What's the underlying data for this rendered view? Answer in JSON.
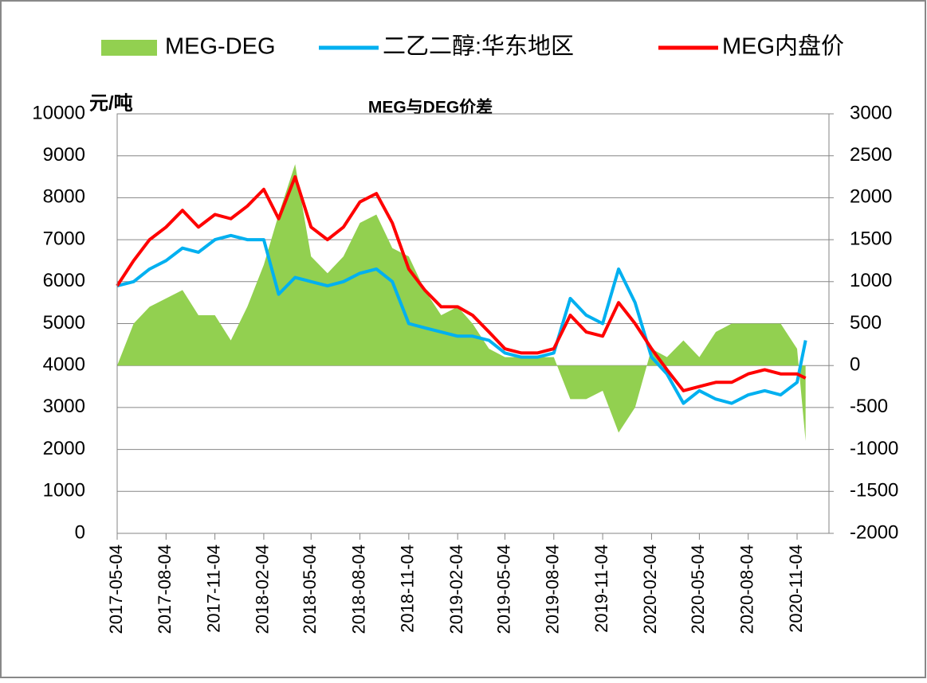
{
  "chart_data": {
    "type": "line",
    "title": "MEG与DEG价差",
    "y_label": "元/吨",
    "x": [
      "2017-05-04",
      "2017-06-04",
      "2017-07-04",
      "2017-08-04",
      "2017-09-04",
      "2017-10-04",
      "2017-11-04",
      "2017-12-04",
      "2018-01-04",
      "2018-02-04",
      "2018-03-04",
      "2018-04-04",
      "2018-05-04",
      "2018-06-04",
      "2018-07-04",
      "2018-08-04",
      "2018-09-04",
      "2018-10-04",
      "2018-11-04",
      "2018-12-04",
      "2019-01-04",
      "2019-02-04",
      "2019-03-04",
      "2019-04-04",
      "2019-05-04",
      "2019-06-04",
      "2019-07-04",
      "2019-08-04",
      "2019-09-04",
      "2019-10-04",
      "2019-11-04",
      "2019-12-04",
      "2020-01-04",
      "2020-02-04",
      "2020-03-04",
      "2020-04-04",
      "2020-05-04",
      "2020-06-04",
      "2020-07-04",
      "2020-08-04",
      "2020-09-04",
      "2020-10-04",
      "2020-11-04",
      "2020-11-20"
    ],
    "series": [
      {
        "name": "MEG-DEG",
        "color": "#92d050",
        "type": "area",
        "axis": "y2",
        "values": [
          0,
          500,
          700,
          800,
          900,
          600,
          600,
          300,
          700,
          1200,
          1800,
          2400,
          1300,
          1100,
          1300,
          1700,
          1800,
          1400,
          1300,
          900,
          600,
          700,
          500,
          200,
          100,
          100,
          100,
          100,
          -400,
          -400,
          -300,
          -800,
          -500,
          200,
          100,
          300,
          100,
          400,
          500,
          500,
          500,
          500,
          200,
          -900
        ]
      },
      {
        "name": "二乙二醇:华东地区",
        "color": "#00b0f0",
        "type": "line",
        "values": [
          5900,
          6000,
          6300,
          6500,
          6800,
          6700,
          7000,
          7100,
          7000,
          7000,
          5700,
          6100,
          6000,
          5900,
          6000,
          6200,
          6300,
          6000,
          5000,
          4900,
          4800,
          4700,
          4700,
          4600,
          4300,
          4200,
          4200,
          4300,
          5600,
          5200,
          5000,
          6300,
          5500,
          4200,
          3800,
          3100,
          3400,
          3200,
          3100,
          3300,
          3400,
          3300,
          3600,
          4600
        ]
      },
      {
        "name": "MEG内盘价",
        "color": "#ff0000",
        "type": "line",
        "values": [
          5900,
          6500,
          7000,
          7300,
          7700,
          7300,
          7600,
          7500,
          7800,
          8200,
          7500,
          8500,
          7300,
          7000,
          7300,
          7900,
          8100,
          7400,
          6300,
          5800,
          5400,
          5400,
          5200,
          4800,
          4400,
          4300,
          4300,
          4400,
          5200,
          4800,
          4700,
          5500,
          5000,
          4400,
          3900,
          3400,
          3500,
          3600,
          3600,
          3800,
          3900,
          3800,
          3800,
          3700
        ]
      }
    ],
    "xlim": [
      "2017-05-04",
      "2021-01-03"
    ],
    "xticks": [
      "2017-05-04",
      "2017-08-04",
      "2017-11-04",
      "2018-02-04",
      "2018-05-04",
      "2018-08-04",
      "2018-11-04",
      "2019-02-04",
      "2019-05-04",
      "2019-08-04",
      "2019-11-04",
      "2020-02-04",
      "2020-05-04",
      "2020-08-04",
      "2020-11-04"
    ],
    "ylim": [
      0,
      10000
    ],
    "yticks": [
      0,
      1000,
      2000,
      3000,
      4000,
      5000,
      6000,
      7000,
      8000,
      9000,
      10000
    ],
    "y2lim": [
      -2000,
      3000
    ],
    "y2ticks": [
      -2000,
      -1500,
      -1000,
      -500,
      0,
      500,
      1000,
      1500,
      2000,
      2500,
      3000
    ],
    "grid": true
  }
}
